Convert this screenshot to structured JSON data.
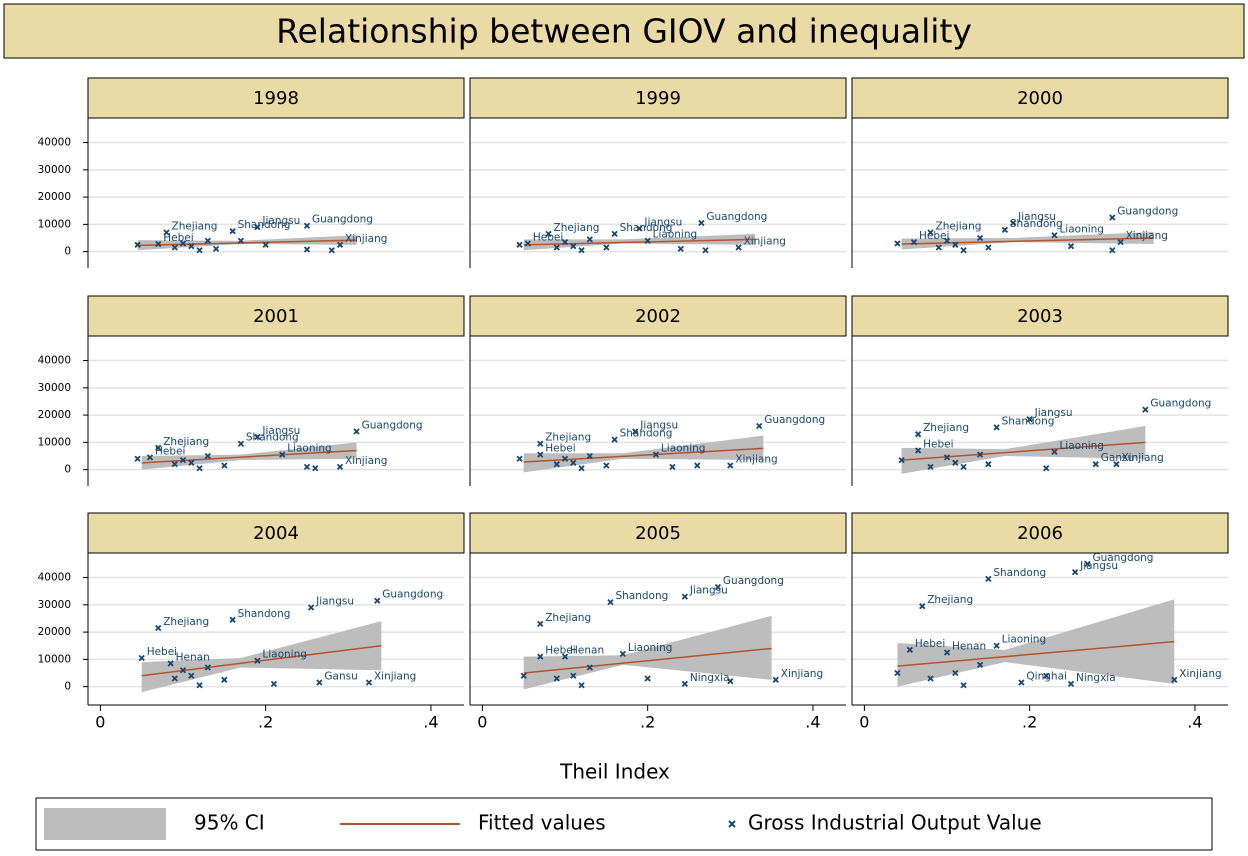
{
  "title": "Relationship between GIOV and inequality",
  "xlabel": "Theil Index",
  "axes": {
    "xlim": [
      -0.015,
      0.44
    ],
    "ylim": [
      -6000,
      49000
    ],
    "xticks": [
      0,
      {
        "value": 0.2,
        "label": ".2"
      },
      {
        "value": 0.4,
        "label": ".4"
      }
    ],
    "yticks": [
      0,
      10000,
      20000,
      30000,
      40000
    ],
    "grid": true
  },
  "legend": {
    "position": "bottom",
    "ci": {
      "name": "95% CI",
      "color": "#bdbdbd"
    },
    "fit": {
      "name": "Fitted values",
      "color": "#b5532b"
    },
    "points": {
      "name": "Gross Industrial Output Value",
      "color": "#1a476f"
    }
  },
  "chart_data": [
    {
      "type": "scatter",
      "title": "1998",
      "x": [
        0.045,
        0.07,
        0.08,
        0.09,
        0.1,
        0.11,
        0.12,
        0.13,
        0.14,
        0.16,
        0.19,
        0.17,
        0.2,
        0.25,
        0.25,
        0.28,
        0.29
      ],
      "y": [
        2500,
        2800,
        7000,
        1500,
        3000,
        2000,
        500,
        4000,
        1000,
        7500,
        9000,
        4000,
        2500,
        9500,
        800,
        500,
        2500
      ],
      "labels": [
        null,
        "Hebei",
        "Zhejiang",
        null,
        null,
        null,
        null,
        null,
        null,
        "Shandong",
        "Jiangsu",
        null,
        null,
        "Guangdong",
        null,
        null,
        "Xinjiang"
      ],
      "fit": {
        "x": [
          0.045,
          0.31
        ],
        "y": [
          2300,
          4200
        ]
      },
      "ci": {
        "x": [
          0.045,
          0.17,
          0.31
        ],
        "lower": [
          500,
          2800,
          2500
        ],
        "upper": [
          4200,
          4000,
          6000
        ]
      }
    },
    {
      "type": "scatter",
      "title": "1999",
      "x": [
        0.045,
        0.055,
        0.08,
        0.09,
        0.1,
        0.11,
        0.12,
        0.13,
        0.15,
        0.16,
        0.19,
        0.2,
        0.24,
        0.265,
        0.27,
        0.31
      ],
      "y": [
        2500,
        3000,
        6500,
        1500,
        3500,
        2000,
        500,
        4500,
        1500,
        6500,
        8500,
        4000,
        1000,
        10500,
        500,
        1500
      ],
      "labels": [
        null,
        "Hebei",
        "Zhejiang",
        null,
        null,
        null,
        null,
        null,
        null,
        "Shandong",
        "Jiangsu",
        "Liaoning",
        null,
        "Guangdong",
        null,
        "Xinjiang"
      ],
      "fit": {
        "x": [
          0.05,
          0.33
        ],
        "y": [
          2500,
          4500
        ]
      },
      "ci": {
        "x": [
          0.05,
          0.17,
          0.33
        ],
        "lower": [
          500,
          3000,
          2500
        ],
        "upper": [
          4500,
          4500,
          6500
        ]
      }
    },
    {
      "type": "scatter",
      "title": "2000",
      "x": [
        0.04,
        0.06,
        0.08,
        0.09,
        0.1,
        0.11,
        0.12,
        0.14,
        0.15,
        0.17,
        0.18,
        0.23,
        0.25,
        0.3,
        0.3,
        0.31
      ],
      "y": [
        3000,
        3500,
        7000,
        1500,
        4000,
        2500,
        500,
        5000,
        1500,
        8000,
        10500,
        6000,
        2000,
        12500,
        500,
        3500
      ],
      "labels": [
        null,
        "Hebei",
        "Zhejiang",
        null,
        null,
        null,
        null,
        null,
        null,
        "Shandong",
        "Jiangsu",
        "Liaoning",
        null,
        "Guangdong",
        null,
        "Xinjiang"
      ],
      "fit": {
        "x": [
          0.045,
          0.35
        ],
        "y": [
          2800,
          5000
        ]
      },
      "ci": {
        "x": [
          0.045,
          0.18,
          0.35
        ],
        "lower": [
          800,
          3500,
          2800
        ],
        "upper": [
          4800,
          5000,
          7200
        ]
      }
    },
    {
      "type": "scatter",
      "title": "2001",
      "x": [
        0.045,
        0.06,
        0.07,
        0.09,
        0.1,
        0.11,
        0.12,
        0.13,
        0.15,
        0.17,
        0.19,
        0.22,
        0.25,
        0.26,
        0.29,
        0.31
      ],
      "y": [
        4000,
        4500,
        8000,
        2000,
        3500,
        2500,
        500,
        5000,
        1500,
        9500,
        12000,
        5500,
        1000,
        500,
        1000,
        14000
      ],
      "labels": [
        null,
        "Hebei",
        "Zhejiang",
        null,
        null,
        null,
        null,
        null,
        null,
        "Shandong",
        "Jiangsu",
        "Liaoning",
        null,
        null,
        "Xinjiang",
        "Guangdong"
      ],
      "fit": {
        "x": [
          0.05,
          0.31
        ],
        "y": [
          2500,
          7000
        ]
      },
      "ci": {
        "x": [
          0.05,
          0.17,
          0.31
        ],
        "lower": [
          0,
          3500,
          4000
        ],
        "upper": [
          5000,
          5500,
          10000
        ]
      }
    },
    {
      "type": "scatter",
      "title": "2002",
      "x": [
        0.045,
        0.07,
        0.07,
        0.09,
        0.1,
        0.11,
        0.12,
        0.13,
        0.15,
        0.16,
        0.185,
        0.21,
        0.23,
        0.26,
        0.3,
        0.335
      ],
      "y": [
        4000,
        5500,
        9500,
        2000,
        4000,
        2500,
        500,
        5000,
        1500,
        11000,
        14000,
        5500,
        1000,
        1500,
        1500,
        16000
      ],
      "labels": [
        null,
        "Hebei",
        "Zhejiang",
        null,
        null,
        null,
        null,
        null,
        null,
        "Shandong",
        "Jiangsu",
        "Liaoning",
        null,
        null,
        "Xinjiang",
        "Guangdong"
      ],
      "fit": {
        "x": [
          0.05,
          0.34
        ],
        "y": [
          2800,
          7800
        ]
      },
      "ci": {
        "x": [
          0.05,
          0.17,
          0.34
        ],
        "lower": [
          -1000,
          4000,
          3500
        ],
        "upper": [
          6000,
          6000,
          12500
        ]
      }
    },
    {
      "type": "scatter",
      "title": "2003",
      "x": [
        0.045,
        0.065,
        0.065,
        0.08,
        0.1,
        0.11,
        0.12,
        0.14,
        0.15,
        0.16,
        0.2,
        0.22,
        0.23,
        0.28,
        0.305,
        0.34
      ],
      "y": [
        3500,
        7000,
        13000,
        1000,
        4500,
        2500,
        1000,
        5500,
        2000,
        15500,
        18500,
        500,
        6500,
        2000,
        2000,
        22000
      ],
      "labels": [
        null,
        "Hebei",
        "Zhejiang",
        null,
        null,
        null,
        null,
        null,
        null,
        "Shandong",
        "Jiangsu",
        null,
        "Liaoning",
        "Gansu",
        "Xinjiang",
        "Guangdong"
      ],
      "fit": {
        "x": [
          0.045,
          0.34
        ],
        "y": [
          3500,
          10000
        ]
      },
      "ci": {
        "x": [
          0.045,
          0.17,
          0.34
        ],
        "lower": [
          -1500,
          5000,
          4000
        ],
        "upper": [
          8000,
          7500,
          16000
        ]
      }
    },
    {
      "type": "scatter",
      "title": "2004",
      "x": [
        0.05,
        0.07,
        0.085,
        0.09,
        0.1,
        0.11,
        0.12,
        0.13,
        0.15,
        0.16,
        0.19,
        0.21,
        0.255,
        0.265,
        0.325,
        0.335
      ],
      "y": [
        10500,
        21500,
        8500,
        3000,
        6000,
        4000,
        500,
        7000,
        2500,
        24500,
        9500,
        1000,
        29000,
        1500,
        1500,
        31500
      ],
      "labels": [
        "Hebei",
        "Zhejiang",
        "Henan",
        null,
        null,
        null,
        null,
        null,
        null,
        "Shandong",
        "Liaoning",
        null,
        "Jiangsu",
        "Gansu",
        "Xinjiang",
        "Guangdong"
      ],
      "fit": {
        "x": [
          0.05,
          0.34
        ],
        "y": [
          4000,
          15000
        ]
      },
      "ci": {
        "x": [
          0.05,
          0.17,
          0.34
        ],
        "lower": [
          -2000,
          7000,
          6000
        ],
        "upper": [
          9000,
          10500,
          24000
        ]
      }
    },
    {
      "type": "scatter",
      "title": "2005",
      "x": [
        0.05,
        0.07,
        0.07,
        0.09,
        0.1,
        0.11,
        0.12,
        0.13,
        0.155,
        0.17,
        0.2,
        0.245,
        0.245,
        0.285,
        0.3,
        0.355
      ],
      "y": [
        4000,
        11000,
        23000,
        3000,
        11000,
        4000,
        500,
        7000,
        31000,
        12000,
        3000,
        1000,
        33000,
        36500,
        2000,
        2500
      ],
      "labels": [
        null,
        "Hebei",
        "Zhejiang",
        null,
        "Henan",
        null,
        null,
        null,
        "Shandong",
        "Liaoning",
        null,
        "Ningxia",
        "Jiangsu",
        "Guangdong",
        null,
        "Xinjiang"
      ],
      "fit": {
        "x": [
          0.05,
          0.35
        ],
        "y": [
          5000,
          14000
        ]
      },
      "ci": {
        "x": [
          0.05,
          0.17,
          0.35
        ],
        "lower": [
          -1000,
          8000,
          2500
        ],
        "upper": [
          11000,
          11500,
          26000
        ]
      }
    },
    {
      "type": "scatter",
      "title": "2006",
      "x": [
        0.04,
        0.055,
        0.07,
        0.08,
        0.1,
        0.11,
        0.12,
        0.14,
        0.15,
        0.16,
        0.19,
        0.22,
        0.25,
        0.255,
        0.27,
        0.375
      ],
      "y": [
        5000,
        13500,
        29500,
        3000,
        12500,
        5000,
        500,
        8000,
        39500,
        15000,
        1500,
        4000,
        1000,
        42000,
        45000,
        2500
      ],
      "labels": [
        null,
        "Hebei",
        "Zhejiang",
        null,
        "Henan",
        null,
        null,
        null,
        "Shandong",
        "Liaoning",
        "Qinghai",
        null,
        "Ningxia",
        "Jiangsu",
        "Guangdong",
        "Xinjiang"
      ],
      "fit": {
        "x": [
          0.04,
          0.375
        ],
        "y": [
          7500,
          16500
        ]
      },
      "ci": {
        "x": [
          0.04,
          0.17,
          0.375
        ],
        "lower": [
          0,
          9000,
          1000
        ],
        "upper": [
          16000,
          13500,
          32000
        ]
      }
    }
  ]
}
